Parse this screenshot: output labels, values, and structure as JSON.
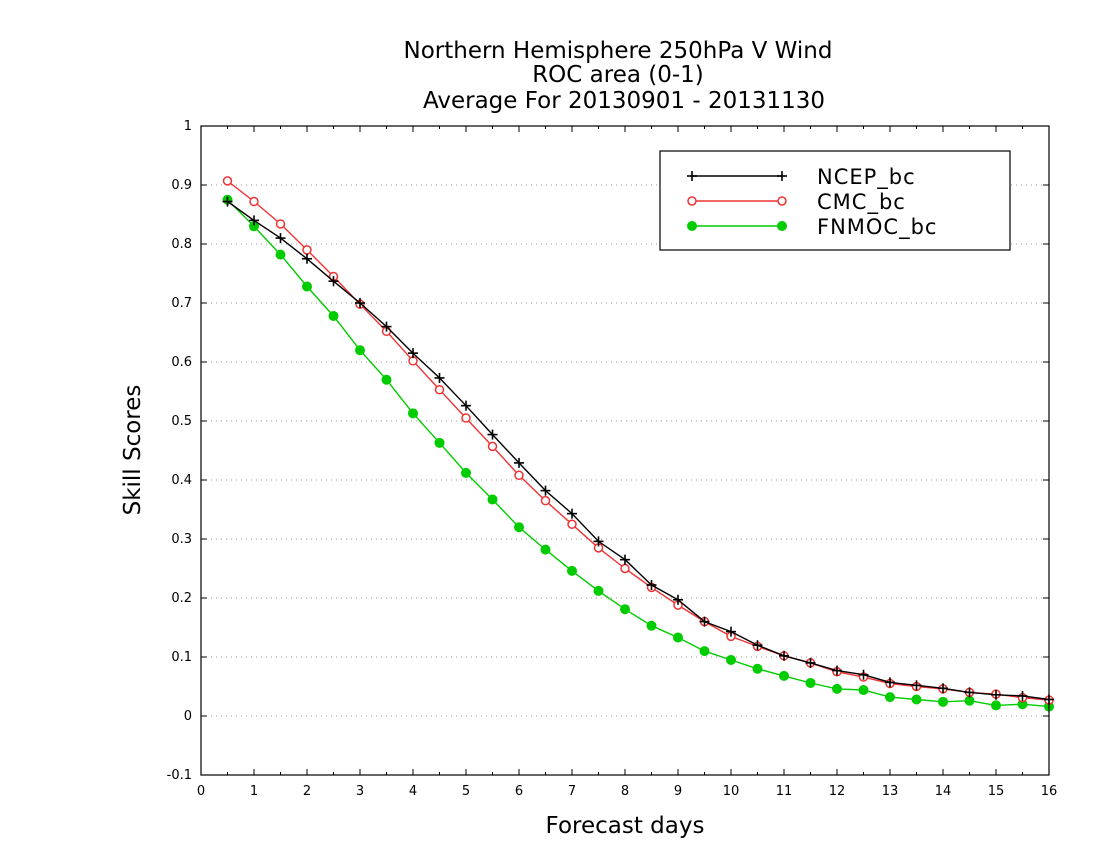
{
  "chart_data": {
    "type": "line",
    "title": "Northern Hemisphere 250hPa V Wind",
    "subtitle": [
      "ROC area (0-1)",
      "Average For 20130901 - 20131130"
    ],
    "xlabel": "Forecast days",
    "ylabel": "Skill Scores",
    "xlim": [
      0,
      16
    ],
    "ylim": [
      -0.1,
      1
    ],
    "xticks": [
      0,
      1,
      2,
      3,
      4,
      5,
      6,
      7,
      8,
      9,
      10,
      11,
      12,
      13,
      14,
      15,
      16
    ],
    "yticks": [
      -0.1,
      0,
      0.1,
      0.2,
      0.3,
      0.4,
      0.5,
      0.6,
      0.7,
      0.8,
      0.9,
      1
    ],
    "xtick_labels": [
      "0",
      "1",
      "2",
      "3",
      "4",
      "5",
      "6",
      "7",
      "8",
      "9",
      "10",
      "11",
      "12",
      "13",
      "14",
      "15",
      "16"
    ],
    "ytick_labels": [
      "-0.1",
      "0",
      "0.1",
      "0.2",
      "0.3",
      "0.4",
      "0.5",
      "0.6",
      "0.7",
      "0.8",
      "0.9",
      "1"
    ],
    "grid": "horizontal-dotted",
    "legend_position": "top-right",
    "x": [
      0.5,
      1,
      1.5,
      2,
      2.5,
      3,
      3.5,
      4,
      4.5,
      5,
      5.5,
      6,
      6.5,
      7,
      7.5,
      8,
      8.5,
      9,
      9.5,
      10,
      10.5,
      11,
      11.5,
      12,
      12.5,
      13,
      13.5,
      14,
      14.5,
      15,
      15.5,
      16
    ],
    "series": [
      {
        "name": "NCEP_bc",
        "color": "#000000",
        "marker": "plus",
        "values": [
          0.872,
          0.84,
          0.81,
          0.775,
          0.737,
          0.7,
          0.66,
          0.615,
          0.573,
          0.526,
          0.477,
          0.429,
          0.382,
          0.343,
          0.296,
          0.265,
          0.222,
          0.197,
          0.16,
          0.143,
          0.12,
          0.102,
          0.09,
          0.077,
          0.07,
          0.057,
          0.052,
          0.047,
          0.04,
          0.036,
          0.034,
          0.028
        ]
      },
      {
        "name": "CMC_bc",
        "color": "#ee3333",
        "marker": "open-circle",
        "values": [
          0.907,
          0.872,
          0.834,
          0.79,
          0.745,
          0.698,
          0.652,
          0.602,
          0.553,
          0.505,
          0.457,
          0.408,
          0.365,
          0.325,
          0.285,
          0.25,
          0.218,
          0.188,
          0.16,
          0.135,
          0.118,
          0.102,
          0.09,
          0.075,
          0.066,
          0.055,
          0.05,
          0.046,
          0.04,
          0.037,
          0.031,
          0.027
        ]
      },
      {
        "name": "FNMOC_bc",
        "color": "#00cc00",
        "marker": "filled-circle",
        "values": [
          0.875,
          0.83,
          0.782,
          0.728,
          0.678,
          0.62,
          0.57,
          0.513,
          0.463,
          0.412,
          0.367,
          0.32,
          0.282,
          0.246,
          0.212,
          0.181,
          0.153,
          0.133,
          0.11,
          0.095,
          0.08,
          0.068,
          0.056,
          0.046,
          0.044,
          0.032,
          0.028,
          0.024,
          0.026,
          0.018,
          0.02,
          0.016
        ]
      }
    ]
  }
}
